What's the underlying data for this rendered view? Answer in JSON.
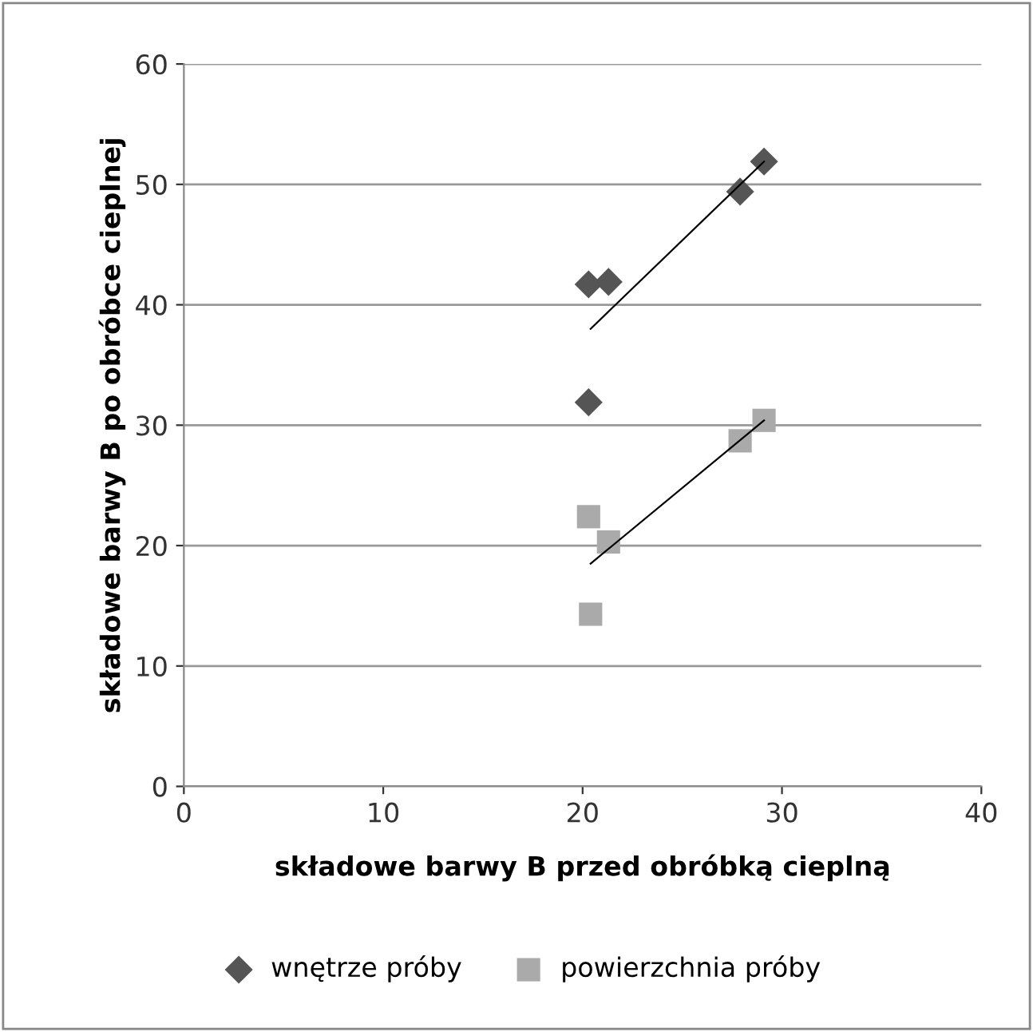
{
  "chart_data": {
    "type": "scatter",
    "xlabel": "składowe barwy B przed obróbką cieplną",
    "ylabel": "składowe barwy B po obróbce cieplnej",
    "xlim": [
      0,
      40
    ],
    "xticks": [
      0,
      10,
      20,
      30,
      40
    ],
    "ylim": [
      0,
      60
    ],
    "yticks": [
      0,
      10,
      20,
      30,
      40,
      50,
      60
    ],
    "grid": "y",
    "legend": "bottom",
    "series": [
      {
        "name": "wnętrze próby",
        "color": "#555555",
        "marker": "diamond",
        "x": [
          20.3,
          21.3,
          27.9,
          29.1,
          20.3
        ],
        "values": [
          41.7,
          41.9,
          49.4,
          51.9,
          31.9
        ]
      },
      {
        "name": "powierzchnia próby",
        "color": "#aaaaaa",
        "marker": "square",
        "x": [
          20.3,
          21.3,
          20.4,
          27.9,
          29.1
        ],
        "values": [
          22.4,
          20.3,
          14.3,
          28.7,
          30.4
        ]
      },
      {
        "type": "line",
        "color": "#000000",
        "marker": "none",
        "x": [
          20.4,
          29.1
        ],
        "values": [
          38.0,
          51.9
        ]
      },
      {
        "type": "line",
        "color": "#000000",
        "marker": "none",
        "x": [
          20.4,
          29.1
        ],
        "values": [
          18.5,
          30.4
        ]
      }
    ]
  }
}
